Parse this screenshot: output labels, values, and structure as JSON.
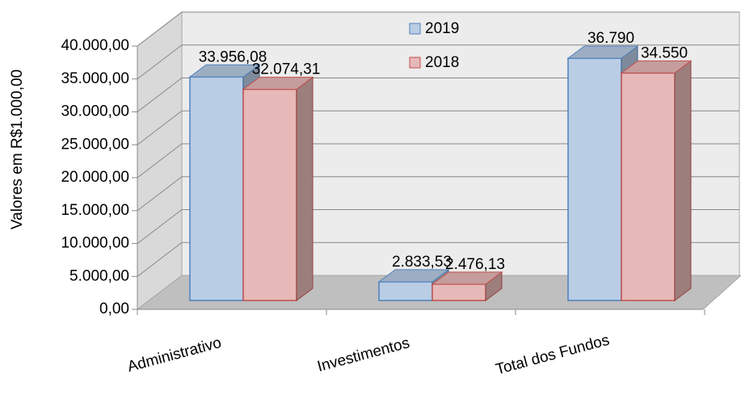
{
  "chart_data": {
    "type": "bar3d",
    "ylabel": "Valores em R$1.000,00",
    "categories": [
      "Administrativo",
      "Investimentos",
      "Total dos Fundos"
    ],
    "series": [
      {
        "name": "2019",
        "color": "#b9cde5",
        "edge": "#4f81bd",
        "values": [
          33956.08,
          2833.53,
          36790
        ],
        "value_labels": [
          "33.956,08",
          "2.833,53",
          "36.790"
        ]
      },
      {
        "name": "2018",
        "color": "#e6b9b8",
        "edge": "#c0504d",
        "values": [
          32074.31,
          2476.13,
          34550
        ],
        "value_labels": [
          "32.074,31",
          "2.476,13",
          "34.550"
        ]
      }
    ],
    "ylim": [
      0,
      40000
    ],
    "yticks": [
      {
        "value": 0,
        "label": "0,00"
      },
      {
        "value": 5000,
        "label": "5.000,00"
      },
      {
        "value": 10000,
        "label": "10.000,00"
      },
      {
        "value": 15000,
        "label": "15.000,00"
      },
      {
        "value": 20000,
        "label": "20.000,00"
      },
      {
        "value": 25000,
        "label": "25.000,00"
      },
      {
        "value": 30000,
        "label": "30.000,00"
      },
      {
        "value": 35000,
        "label": "35.000,00"
      },
      {
        "value": 40000,
        "label": "40.000,00"
      }
    ],
    "grid": true
  }
}
